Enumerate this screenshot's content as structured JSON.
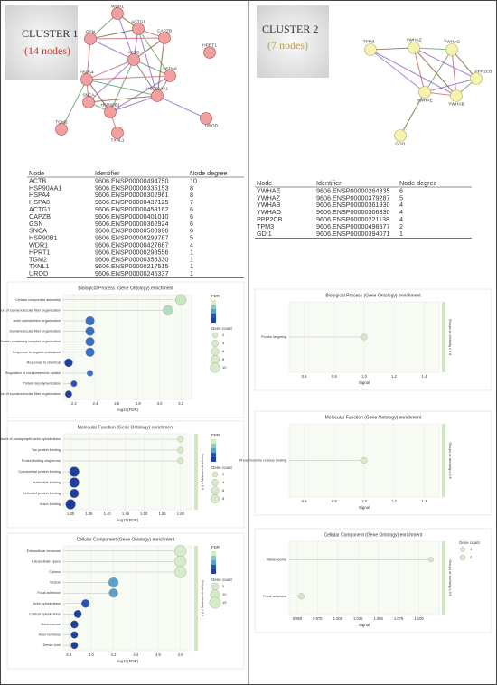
{
  "cluster1": {
    "title": "CLUSTER 1",
    "subtitle": "(14 nodes)",
    "nodes": [
      "WDR1",
      "ACTG1",
      "CAPZB",
      "GSN",
      "ACTB",
      "HPRT1",
      "HSPA8",
      "HSPA4",
      "HSP90AA1",
      "SNCA",
      "HSP90B1",
      "UROD",
      "TGM2",
      "TXNL1"
    ],
    "table": {
      "header": [
        "Node",
        "Identifier",
        "Node degree"
      ],
      "rows": [
        [
          "ACTB",
          "9606.ENSP00000494750",
          10
        ],
        [
          "HSP90AA1",
          "9606.ENSP00000335153",
          8
        ],
        [
          "HSPA4",
          "9606.ENSP00000302961",
          8
        ],
        [
          "HSPA8",
          "9606.ENSP00000437125",
          7
        ],
        [
          "ACTG1",
          "9606.ENSP00000458162",
          6
        ],
        [
          "CAPZB",
          "9606.ENSP00000401010",
          6
        ],
        [
          "GSN",
          "9606.ENSP00000362924",
          6
        ],
        [
          "SNCA",
          "9606.ENSP00000500990",
          6
        ],
        [
          "HSP90B1",
          "9606.ENSP00000299767",
          5
        ],
        [
          "WDR1",
          "9606.ENSP00000427687",
          4
        ],
        [
          "HPRT1",
          "9606.ENSP00000298556",
          1
        ],
        [
          "TGM2",
          "9606.ENSP00000355330",
          1
        ],
        [
          "TXNL1",
          "9606.ENSP00000217515",
          1
        ],
        [
          "UROD",
          "9606.ENSP00000246337",
          1
        ]
      ]
    }
  },
  "cluster2": {
    "title": "CLUSTER 2",
    "subtitle": "(7 nodes)",
    "nodes": [
      "TPM3",
      "YWHAZ",
      "YWHAG",
      "PPP2CB",
      "YWHAE",
      "YWHAB",
      "GDI1"
    ],
    "table": {
      "header": [
        "Node",
        "Identifier",
        "Node degree"
      ],
      "rows": [
        [
          "YWHAE",
          "9606.ENSP00000264335",
          6
        ],
        [
          "YWHAZ",
          "9606.ENSP00000379287",
          5
        ],
        [
          "YWHAB",
          "9606.ENSP00000361930",
          4
        ],
        [
          "YWHAG",
          "9606.ENSP00000306330",
          4
        ],
        [
          "PPP2CB",
          "9606.ENSP00000221138",
          4
        ],
        [
          "TPM3",
          "9606.ENSP00000498577",
          2
        ],
        [
          "GDI1",
          "9606.ENSP00000394071",
          1
        ]
      ]
    }
  },
  "chart_data": [
    {
      "type": "dot",
      "title": "Biological Process (Gene Ontology) enrichment",
      "categories": [
        "Cellular component assembly",
        "Regulation of supramolecular fiber organization",
        "Actin cytoskeleton organization",
        "Supramolecular fiber organization",
        "Protein-containing complex organization",
        "Response to organic substance",
        "Response to chemical",
        "Regulation of norepinephrine uptake",
        "Protein depolymerization",
        "Negative regulation of supramolecular fiber organization"
      ],
      "values": [
        3.2,
        3.08,
        2.35,
        2.35,
        2.35,
        2.35,
        2.15,
        2.35,
        2.2,
        2.15
      ],
      "counts": [
        10,
        8,
        6,
        6,
        6,
        6,
        5,
        2,
        2,
        3
      ],
      "colors": [
        "#c8e6c0",
        "#b5dcc0",
        "#3b6fc4",
        "#3b6fc4",
        "#3b6fc4",
        "#3b6fc4",
        "#1f3e9e",
        "#3b6fc4",
        "#2a52b0",
        "#1f3e9e"
      ],
      "xlim": [
        2.1,
        3.3
      ],
      "xticks": [
        2.2,
        2.4,
        2.6,
        2.8,
        {
          "value": 3,
          "label": "3.0"
        },
        3.2
      ],
      "xlabel": "-log10(FDR)",
      "color_legend_title": "FDR",
      "size_legend_title": "Gene count",
      "size_legend": [
        2,
        4,
        6,
        8,
        10
      ]
    },
    {
      "type": "dot",
      "title": "Molecular Function (Gene Ontology) enrichment",
      "categories": [
        "Structural constituent of postsynaptic actin cytoskeleton",
        "Tau protein binding",
        "Protein folding chaperone",
        "Cytoskeletal protein binding",
        "Nucleotide binding",
        "Unfolded protein binding",
        "Anion binding"
      ],
      "values": [
        1.6,
        1.6,
        1.6,
        1.31,
        1.31,
        1.31,
        1.3
      ],
      "counts": [
        2,
        2,
        2,
        8,
        8,
        6,
        8
      ],
      "colors": [
        "#d6ecc8",
        "#d6ecc8",
        "#d6ecc8",
        "#1f3e9e",
        "#1f3e9e",
        "#1f3e9e",
        "#1f3e9e"
      ],
      "xlim": [
        1.28,
        1.63
      ],
      "xticks": [
        {
          "value": 1.3,
          "label": "1.30"
        },
        1.35,
        {
          "value": 1.4,
          "label": "1.40"
        },
        1.45,
        {
          "value": 1.5,
          "label": "1.50"
        },
        1.55,
        {
          "value": 1.6,
          "label": "1.60"
        }
      ],
      "xlabel": "-log10(FDR)",
      "group_label": "Groups w/ similarity ≥ 0.8",
      "color_legend_title": "FDR",
      "size_legend_title": "Gene count",
      "size_legend": [
        2,
        4,
        6,
        8
      ]
    },
    {
      "type": "dot",
      "title": "Cellular Component (Gene Ontology) enrichment",
      "categories": [
        "Extracellular exosome",
        "Extracellular space",
        "Cytosol",
        "Vesicle",
        "Focal adhesion",
        "Actin cytoskeleton",
        "Cortical cytoskeleton",
        "Melanosome",
        "Axon terminus",
        "Dense core"
      ],
      "values": [
        4.8,
        4.8,
        4.8,
        4.2,
        4.2,
        3.95,
        3.88,
        3.85,
        3.85,
        3.85
      ],
      "counts": [
        12,
        12,
        12,
        8,
        6,
        5,
        4,
        4,
        3,
        3
      ],
      "colors": [
        "#d6ecc8",
        "#d6ecc8",
        "#d6ecc8",
        "#5aa0c8",
        "#5aa0c8",
        "#2a52b0",
        "#1f3e9e",
        "#1f3e9e",
        "#1f3e9e",
        "#1f3e9e"
      ],
      "xlim": [
        3.75,
        4.9
      ],
      "xticks": [
        3.8,
        {
          "value": 4,
          "label": "4.0"
        },
        4.2,
        4.4,
        4.6,
        4.8
      ],
      "xlabel": "-log10(FDR)",
      "group_label": "Groups w/ similarity ≥ 0.8",
      "color_legend_title": "FDR",
      "size_legend_title": "Gene count",
      "size_legend": [
        5,
        10,
        15
      ]
    },
    {
      "type": "dot",
      "title": "Biological Process (Gene Ontology) enrichment",
      "categories": [
        "Protein targeting"
      ],
      "values": [
        1
      ],
      "counts": [
        2
      ],
      "colors": [
        "#d6ecc8"
      ],
      "xlim": [
        0.5,
        1.5
      ],
      "xticks": [
        0.6,
        0.8,
        {
          "value": 1,
          "label": "1.0"
        },
        1.2,
        1.4
      ],
      "xlabel": "Signal",
      "group_label": "Groups w/ similarity ≥ 0.8"
    },
    {
      "type": "dot",
      "title": "Molecular Function (Gene Ontology) enrichment",
      "categories": [
        "Phosphoserine residue binding"
      ],
      "values": [
        1
      ],
      "counts": [
        2
      ],
      "colors": [
        "#d6ecc8"
      ],
      "xlim": [
        0.5,
        1.5
      ],
      "xticks": [
        0.6,
        0.8,
        {
          "value": 1,
          "label": "1.0"
        },
        1.2,
        1.4
      ],
      "xlabel": "Signal",
      "group_label": "Groups w/ similarity ≥ 0.8"
    },
    {
      "type": "dot",
      "title": "Cellular Component (Gene Ontology) enrichment",
      "categories": [
        "Melanosome",
        "Focal adhesion"
      ],
      "values": [
        1.115,
        0.955
      ],
      "counts": [
        1,
        2
      ],
      "colors": [
        "#d6ecc8",
        "#d6ecc8"
      ],
      "xlim": [
        0.94,
        1.125
      ],
      "xticks": [
        {
          "value": 0.95,
          "label": "0.950"
        },
        0.975,
        {
          "value": 1,
          "label": "1.000"
        },
        1.025,
        {
          "value": 1.05,
          "label": "1.050"
        },
        1.075,
        {
          "value": 1.1,
          "label": "1.100"
        }
      ],
      "xlabel": "Signal",
      "group_label": "Groups w/ similarity ≥ 0.8",
      "size_legend_title": "Gene count",
      "size_legend": [
        1,
        2
      ]
    }
  ]
}
